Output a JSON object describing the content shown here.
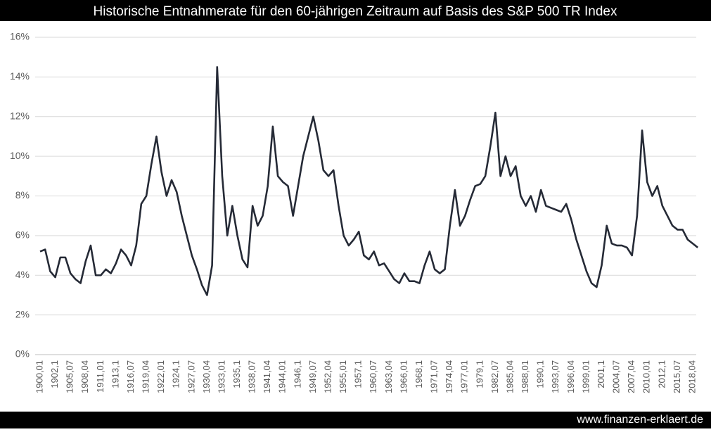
{
  "chart_data": {
    "type": "line",
    "title": "Historische Entnahmerate für den 60-jährigen Zeitraum auf Basis des S&P 500 TR Index",
    "source": "www.finanzen-erklaert.de",
    "categories": [
      "1900,01",
      null,
      null,
      "1902,1",
      null,
      null,
      "1905,07",
      null,
      null,
      "1908,04",
      null,
      null,
      "1911,01",
      null,
      null,
      "1913,1",
      null,
      null,
      "1916,07",
      null,
      null,
      "1919,04",
      null,
      null,
      "1922,01",
      null,
      null,
      "1924,1",
      null,
      null,
      "1927,07",
      null,
      null,
      "1930,04",
      null,
      null,
      "1933,01",
      null,
      null,
      "1935,1",
      null,
      null,
      "1938,07",
      null,
      null,
      "1941,04",
      null,
      null,
      "1944,01",
      null,
      null,
      "1946,1",
      null,
      null,
      "1949,07",
      null,
      null,
      "1952,04",
      null,
      null,
      "1955,01",
      null,
      null,
      "1957,1",
      null,
      null,
      "1960,07",
      null,
      null,
      "1963,04",
      null,
      null,
      "1966,01",
      null,
      null,
      "1968,1",
      null,
      null,
      "1971,07",
      null,
      null,
      "1974,04",
      null,
      null,
      "1977,01",
      null,
      null,
      "1979,1",
      null,
      null,
      "1982,07",
      null,
      null,
      "1985,04",
      null,
      null,
      "1988,01",
      null,
      null,
      "1990,1",
      null,
      null,
      "1993,07",
      null,
      null,
      "1996,04",
      null,
      null,
      "1999,01",
      null,
      null,
      "2001,1",
      null,
      null,
      "2004,07",
      null,
      null,
      "2007,04",
      null,
      null,
      "2010,01",
      null,
      null,
      "2012,1",
      null,
      null,
      "2015,07",
      null,
      null,
      "2018,04",
      null
    ],
    "series": [
      {
        "name": "Entnahmerate",
        "color": "#252a36",
        "values": [
          5.2,
          5.3,
          4.2,
          3.9,
          4.9,
          4.9,
          4.1,
          3.8,
          3.6,
          4.7,
          5.5,
          4.0,
          4.0,
          4.3,
          4.1,
          4.6,
          5.3,
          5.0,
          4.5,
          5.5,
          7.6,
          8.0,
          9.6,
          11.0,
          9.2,
          8.0,
          8.8,
          8.2,
          7.0,
          6.0,
          5.0,
          4.3,
          3.5,
          3.0,
          4.5,
          14.5,
          9.0,
          6.0,
          7.5,
          6.0,
          4.8,
          4.4,
          7.5,
          6.5,
          7.0,
          8.5,
          11.5,
          9.0,
          8.7,
          8.5,
          7.0,
          8.5,
          10.0,
          11.0,
          12.0,
          10.8,
          9.3,
          9.0,
          9.3,
          7.5,
          6.0,
          5.5,
          5.8,
          6.2,
          5.0,
          4.8,
          5.2,
          4.5,
          4.6,
          4.2,
          3.8,
          3.6,
          4.1,
          3.7,
          3.7,
          3.6,
          4.5,
          5.2,
          4.3,
          4.1,
          4.3,
          6.5,
          8.3,
          6.5,
          7.0,
          7.8,
          8.5,
          8.6,
          9.0,
          10.5,
          12.2,
          9.0,
          10.0,
          9.0,
          9.5,
          8.0,
          7.5,
          8.0,
          7.2,
          8.3,
          7.5,
          7.4,
          7.3,
          7.2,
          7.6,
          6.8,
          5.8,
          5.0,
          4.2,
          3.6,
          3.4,
          4.5,
          6.5,
          5.6,
          5.5,
          5.5,
          5.4,
          5.0,
          7.0,
          11.3,
          8.7,
          8.0,
          8.5,
          7.5,
          7.0,
          6.5,
          6.3,
          6.3,
          5.8,
          5.6,
          5.4
        ]
      }
    ],
    "ylim": [
      0,
      16
    ],
    "yticks": [
      {
        "value": 0,
        "label": "0%"
      },
      {
        "value": 2,
        "label": "2%"
      },
      {
        "value": 4,
        "label": "4%"
      },
      {
        "value": 6,
        "label": "6%"
      },
      {
        "value": 8,
        "label": "8%"
      },
      {
        "value": 10,
        "label": "10%"
      },
      {
        "value": 12,
        "label": "12%"
      },
      {
        "value": 14,
        "label": "14%"
      },
      {
        "value": 16,
        "label": "16%"
      }
    ],
    "grid": true
  }
}
